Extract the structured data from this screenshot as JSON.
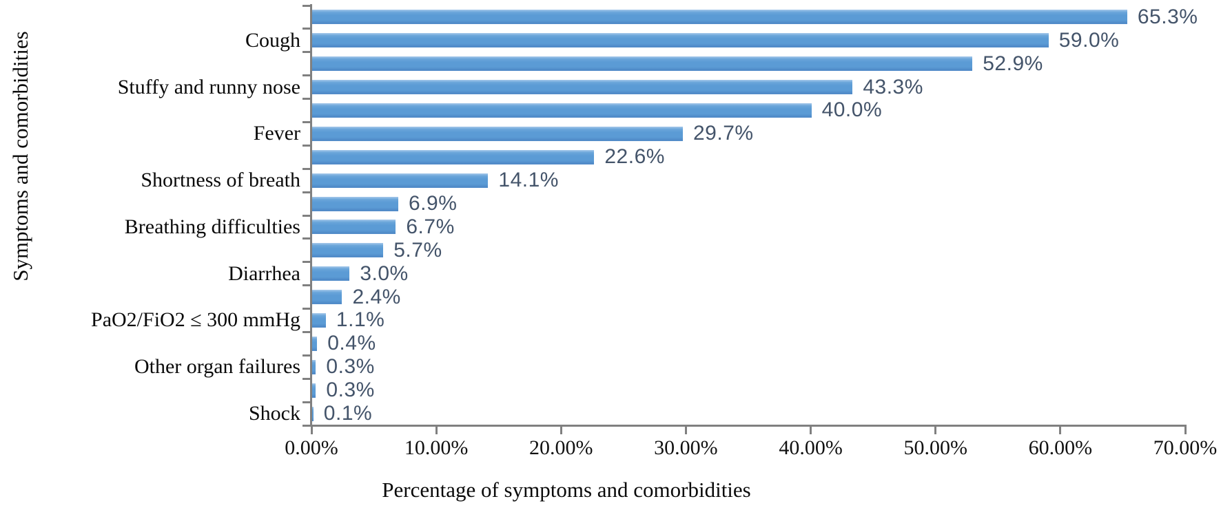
{
  "chart_data": {
    "type": "bar",
    "orientation": "horizontal",
    "xlabel": "Percentage of symptoms and comorbidities",
    "ylabel": "Symptoms and comorbidities",
    "xlim": [
      0,
      70
    ],
    "x_tick_labels": [
      "0.00%",
      "10.00%",
      "20.00%",
      "30.00%",
      "40.00%",
      "50.00%",
      "60.00%",
      "70.00%"
    ],
    "grid": "off",
    "legend": "none",
    "bar_color": "#5B9BD5",
    "value_label_color": "#44546A",
    "axis_color": "#808080",
    "category_label_interval": 2,
    "bars": [
      {
        "category": "",
        "value": 65.3,
        "label": "65.3%"
      },
      {
        "category": "Cough",
        "value": 59.0,
        "label": "59.0%"
      },
      {
        "category": "",
        "value": 52.9,
        "label": "52.9%"
      },
      {
        "category": "Stuffy and runny nose",
        "value": 43.3,
        "label": "43.3%"
      },
      {
        "category": "",
        "value": 40.0,
        "label": "40.0%"
      },
      {
        "category": "Fever",
        "value": 29.7,
        "label": "29.7%"
      },
      {
        "category": "",
        "value": 22.6,
        "label": "22.6%"
      },
      {
        "category": "Shortness of breath",
        "value": 14.1,
        "label": "14.1%"
      },
      {
        "category": "",
        "value": 6.9,
        "label": "6.9%"
      },
      {
        "category": "Breathing difficulties",
        "value": 6.7,
        "label": "6.7%"
      },
      {
        "category": "",
        "value": 5.7,
        "label": "5.7%"
      },
      {
        "category": "Diarrhea",
        "value": 3.0,
        "label": "3.0%"
      },
      {
        "category": "",
        "value": 2.4,
        "label": "2.4%"
      },
      {
        "category": "PaO2/FiO2 ≤ 300 mmHg",
        "value": 1.1,
        "label": "1.1%"
      },
      {
        "category": "",
        "value": 0.4,
        "label": "0.4%"
      },
      {
        "category": "Other organ failures",
        "value": 0.3,
        "label": "0.3%"
      },
      {
        "category": "",
        "value": 0.3,
        "label": "0.3%"
      },
      {
        "category": "Shock",
        "value": 0.1,
        "label": "0.1%"
      }
    ]
  }
}
